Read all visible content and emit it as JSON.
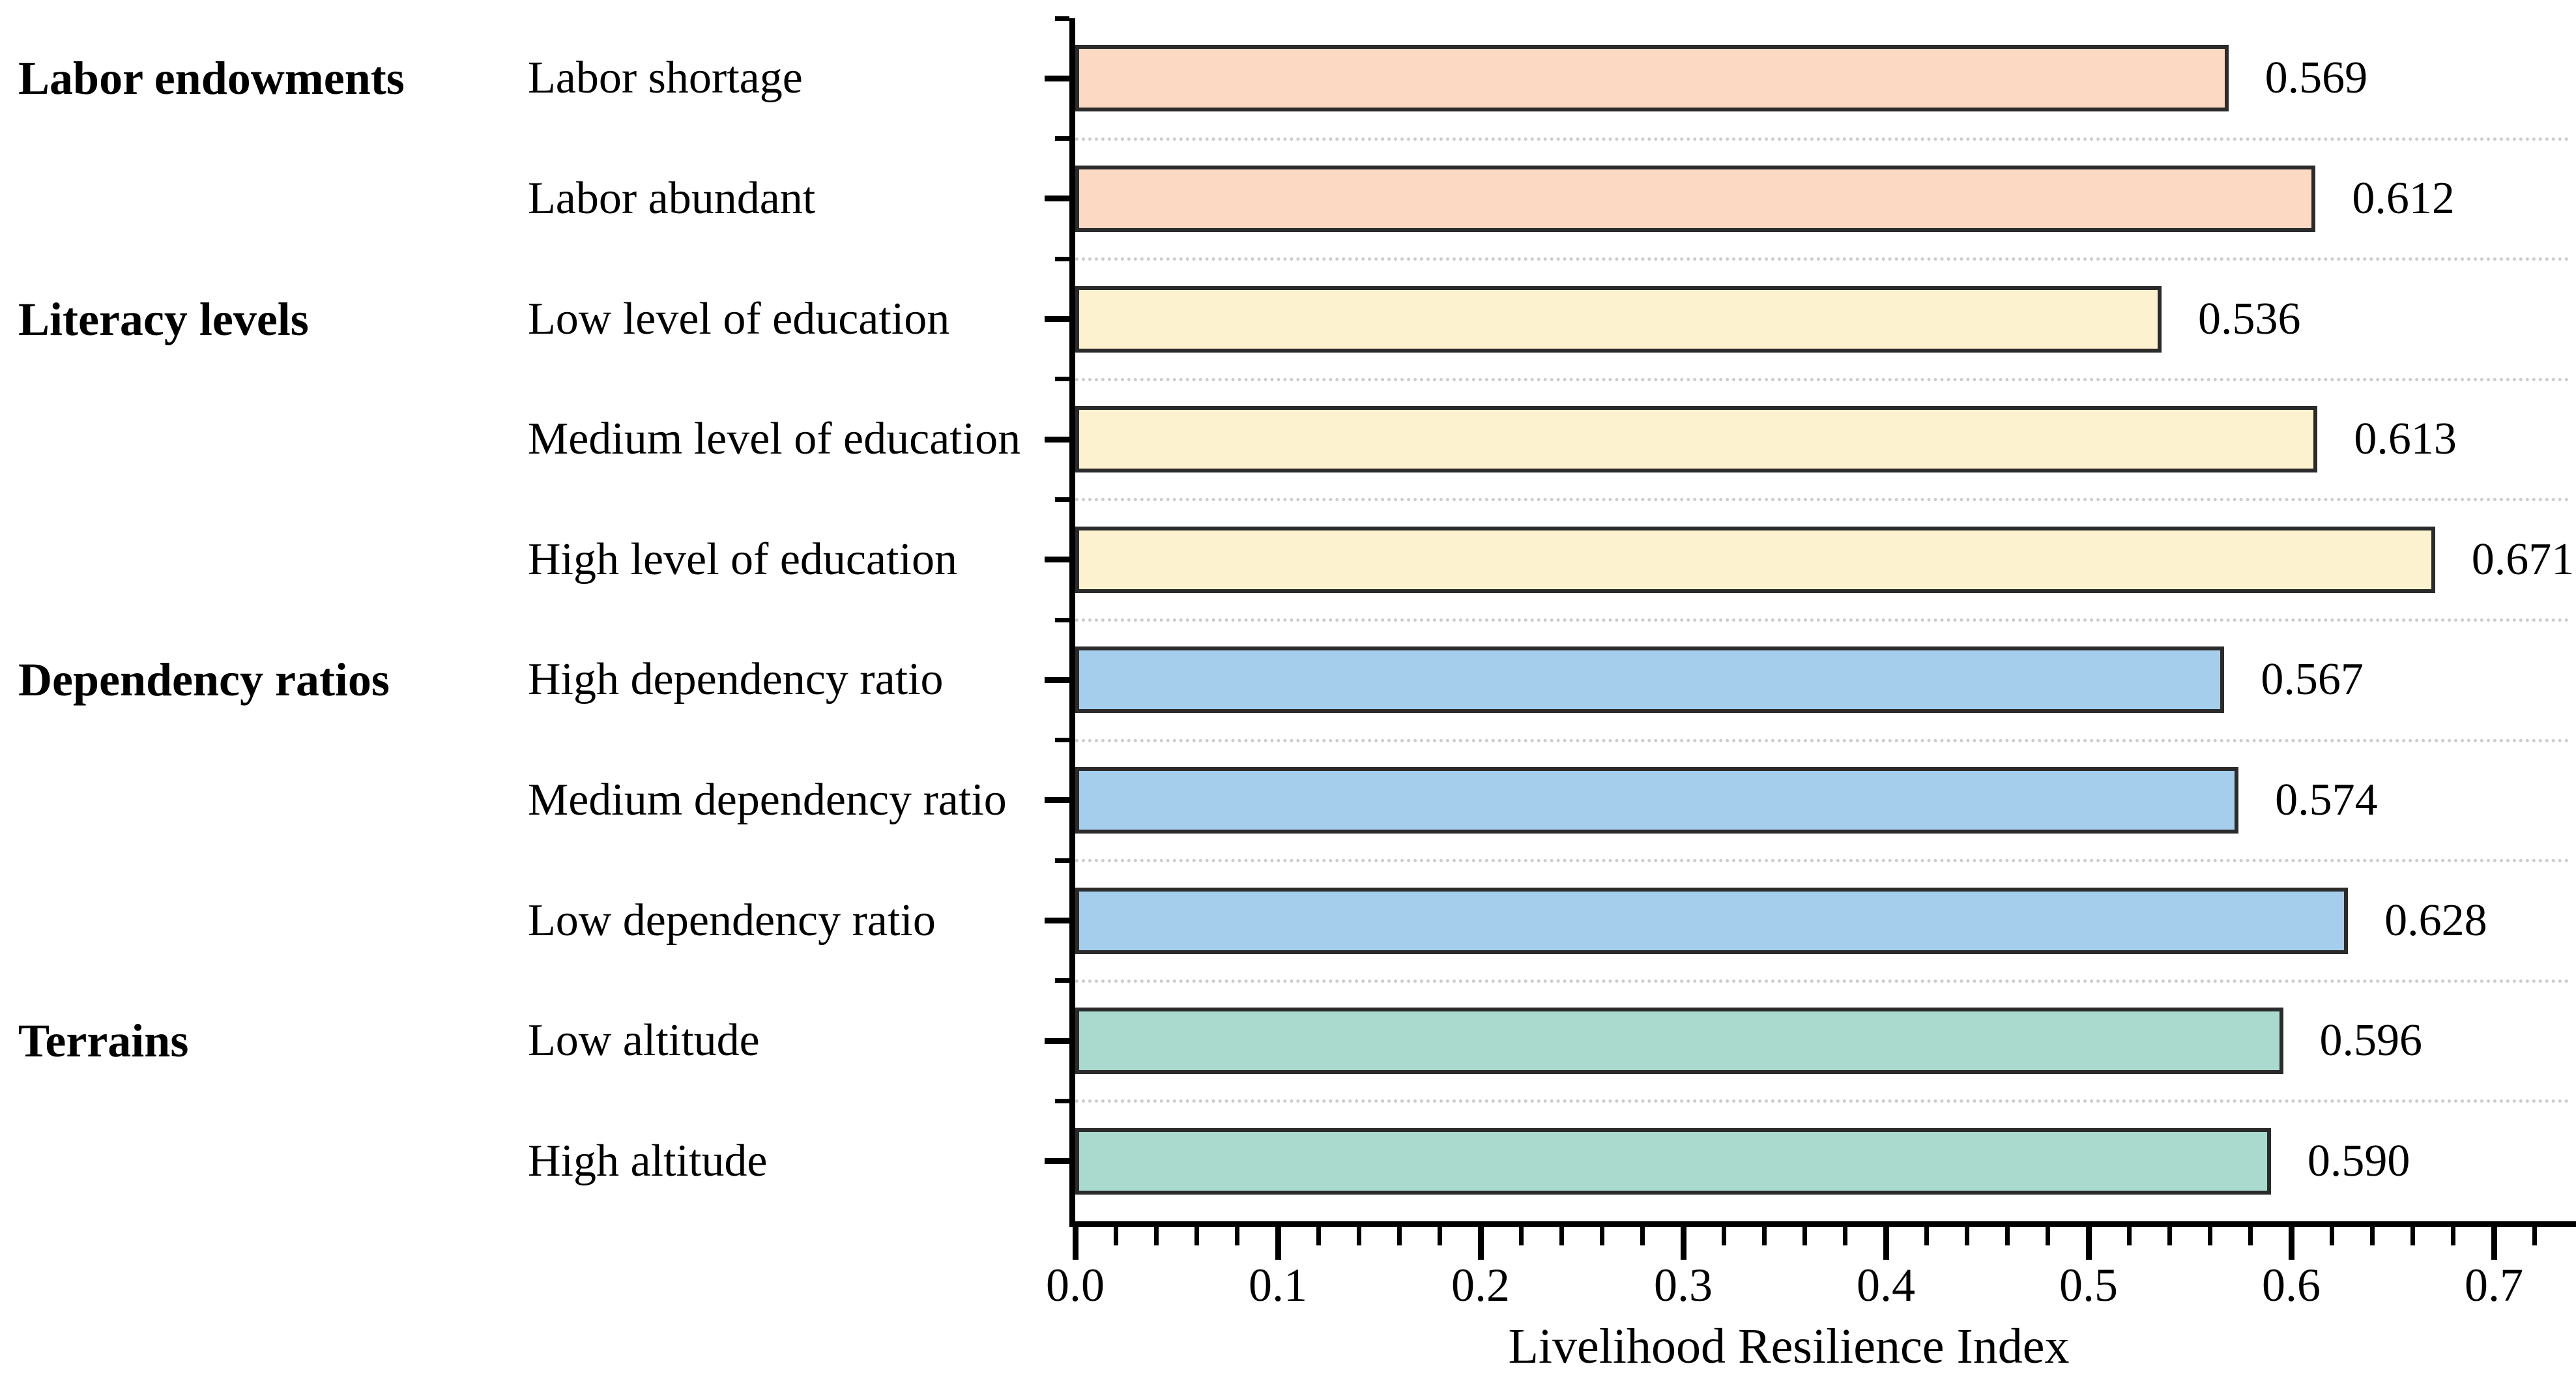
{
  "chart_data": {
    "type": "bar",
    "orientation": "horizontal",
    "title": "",
    "xlabel": "Livelihood Resilience Index",
    "ylabel": "",
    "xlim": [
      0.0,
      0.74
    ],
    "x_major_tick_values": [
      0.0,
      0.1,
      0.2,
      0.3,
      0.4,
      0.5,
      0.6,
      0.7
    ],
    "x_major_tick_labels": [
      "0.0",
      "0.1",
      "0.2",
      "0.3",
      "0.4",
      "0.5",
      "0.6",
      "0.7"
    ],
    "x_minor_tick_step": 0.02,
    "grid": {
      "style": "horizontal dotted lines between bars",
      "color": "#cccccc"
    },
    "legend": "none",
    "bar_edge_color": "#2b2b2b",
    "groups": [
      {
        "label": "Labor endowments",
        "color": "#fbd9c3",
        "items": [
          {
            "label": "Labor shortage",
            "value": 0.569,
            "display": "0.569"
          },
          {
            "label": "Labor abundant",
            "value": 0.612,
            "display": "0.612"
          }
        ]
      },
      {
        "label": "Literacy levels",
        "color": "#fcf2d0",
        "items": [
          {
            "label": "Low level of education",
            "value": 0.536,
            "display": "0.536"
          },
          {
            "label": "Medium level of education",
            "value": 0.613,
            "display": "0.613"
          },
          {
            "label": "High level of education",
            "value": 0.671,
            "display": "0.671"
          }
        ]
      },
      {
        "label": "Dependency ratios",
        "color": "#a5cdec",
        "items": [
          {
            "label": "High dependency ratio",
            "value": 0.567,
            "display": "0.567"
          },
          {
            "label": "Medium dependency ratio",
            "value": 0.574,
            "display": "0.574"
          },
          {
            "label": "Low dependency ratio",
            "value": 0.628,
            "display": "0.628"
          }
        ]
      },
      {
        "label": "Terrains",
        "color": "#aad9ce",
        "items": [
          {
            "label": "Low altitude",
            "value": 0.596,
            "display": "0.596"
          },
          {
            "label": "High altitude",
            "value": 0.59,
            "display": "0.590"
          }
        ]
      }
    ]
  }
}
